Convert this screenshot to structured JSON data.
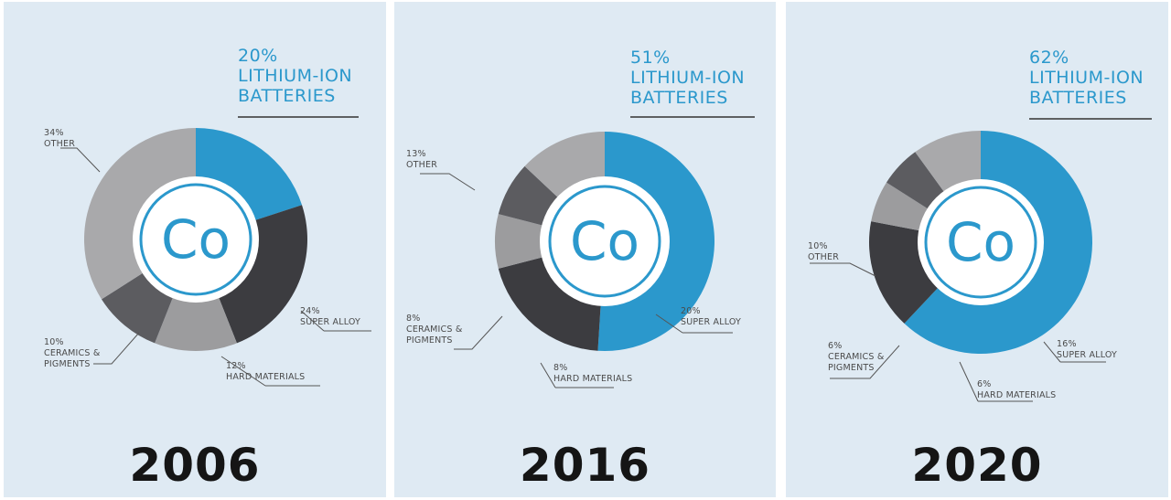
{
  "colors": {
    "lithium": "#2b98cc",
    "super_alloy": "#3c3c40",
    "hard_materials": "#9c9c9e",
    "ceramics": "#5c5c60",
    "other": "#a9a9ab",
    "inner_ring": "#2b98cc",
    "background": "#dfeaf3"
  },
  "center_symbol": "Co",
  "chart_data": [
    {
      "type": "pie",
      "year": "2006",
      "slices": [
        {
          "name": "LITHIUM-ION BATTERIES",
          "value": 20,
          "pct_label": "20%",
          "label_lines": [
            "LITHIUM-ION",
            "BATTERIES"
          ]
        },
        {
          "name": "SUPER ALLOY",
          "value": 24,
          "pct_label": "24%",
          "label_lines": [
            "SUPER ALLOY"
          ]
        },
        {
          "name": "HARD MATERIALS",
          "value": 12,
          "pct_label": "12%",
          "label_lines": [
            "HARD MATERIALS"
          ]
        },
        {
          "name": "CERAMICS & PIGMENTS",
          "value": 10,
          "pct_label": "10%",
          "label_lines": [
            "CERAMICS &",
            "PIGMENTS"
          ]
        },
        {
          "name": "OTHER",
          "value": 34,
          "pct_label": "34%",
          "label_lines": [
            "OTHER"
          ]
        }
      ]
    },
    {
      "type": "pie",
      "year": "2016",
      "slices": [
        {
          "name": "LITHIUM-ION BATTERIES",
          "value": 51,
          "pct_label": "51%",
          "label_lines": [
            "LITHIUM-ION",
            "BATTERIES"
          ]
        },
        {
          "name": "SUPER ALLOY",
          "value": 20,
          "pct_label": "20%",
          "label_lines": [
            "SUPER ALLOY"
          ]
        },
        {
          "name": "HARD MATERIALS",
          "value": 8,
          "pct_label": "8%",
          "label_lines": [
            "HARD MATERIALS"
          ]
        },
        {
          "name": "CERAMICS & PIGMENTS",
          "value": 8,
          "pct_label": "8%",
          "label_lines": [
            "CERAMICS &",
            "PIGMENTS"
          ]
        },
        {
          "name": "OTHER",
          "value": 13,
          "pct_label": "13%",
          "label_lines": [
            "OTHER"
          ]
        }
      ]
    },
    {
      "type": "pie",
      "year": "2020",
      "slices": [
        {
          "name": "LITHIUM-ION BATTERIES",
          "value": 62,
          "pct_label": "62%",
          "label_lines": [
            "LITHIUM-ION",
            "BATTERIES"
          ]
        },
        {
          "name": "SUPER ALLOY",
          "value": 16,
          "pct_label": "16%",
          "label_lines": [
            "SUPER ALLOY"
          ]
        },
        {
          "name": "HARD MATERIALS",
          "value": 6,
          "pct_label": "6%",
          "label_lines": [
            "HARD MATERIALS"
          ]
        },
        {
          "name": "CERAMICS & PIGMENTS",
          "value": 6,
          "pct_label": "6%",
          "label_lines": [
            "CERAMICS &",
            "PIGMENTS"
          ]
        },
        {
          "name": "OTHER",
          "value": 10,
          "pct_label": "10%",
          "label_lines": [
            "OTHER"
          ]
        }
      ]
    }
  ]
}
